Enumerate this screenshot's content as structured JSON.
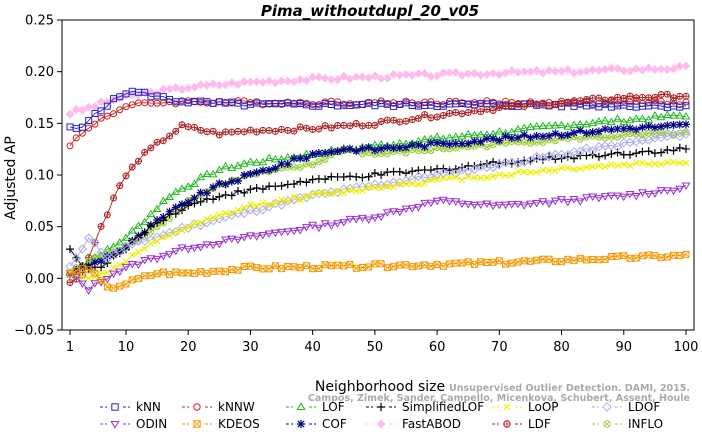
{
  "chart_data": {
    "type": "line",
    "title": "Pima_withoutdupl_20_v05",
    "xlabel": "Neighborhood size",
    "ylabel": "Adjusted AP",
    "xlim": [
      1,
      100
    ],
    "ylim": [
      -0.05,
      0.25
    ],
    "xticks": [
      1,
      10,
      20,
      30,
      40,
      50,
      60,
      70,
      80,
      90,
      100
    ],
    "yticks": [
      -0.05,
      0.0,
      0.05,
      0.1,
      0.15,
      0.2,
      0.25
    ],
    "ytick_labels": [
      "−0.05",
      "0.00",
      "0.05",
      "0.10",
      "0.15",
      "0.20",
      "0.25"
    ],
    "grid": false,
    "legend_position": "bottom",
    "watermark": [
      "Unsupervised Outlier Detection. DAMI, 2015.",
      "Campos, Zimek, Sander, Campello, Micenkova, Schubert, Assent, Houle"
    ],
    "series": [
      {
        "name": "kNN",
        "color": "#2222cc",
        "marker": "square",
        "anchors": [
          [
            1,
            0.145
          ],
          [
            3,
            0.145
          ],
          [
            5,
            0.16
          ],
          [
            8,
            0.172
          ],
          [
            10,
            0.18
          ],
          [
            12,
            0.18
          ],
          [
            15,
            0.176
          ],
          [
            18,
            0.172
          ],
          [
            22,
            0.17
          ],
          [
            30,
            0.168
          ],
          [
            50,
            0.168
          ],
          [
            70,
            0.168
          ],
          [
            100,
            0.167
          ]
        ]
      },
      {
        "name": "kNNW",
        "color": "#cc2222",
        "marker": "circle",
        "anchors": [
          [
            1,
            0.13
          ],
          [
            3,
            0.14
          ],
          [
            6,
            0.155
          ],
          [
            10,
            0.166
          ],
          [
            14,
            0.17
          ],
          [
            20,
            0.171
          ],
          [
            30,
            0.17
          ],
          [
            50,
            0.17
          ],
          [
            70,
            0.17
          ],
          [
            100,
            0.17
          ]
        ]
      },
      {
        "name": "LOF",
        "color": "#22bb22",
        "marker": "triangle-up",
        "anchors": [
          [
            1,
            0.005
          ],
          [
            5,
            0.02
          ],
          [
            8,
            0.03
          ],
          [
            12,
            0.05
          ],
          [
            17,
            0.08
          ],
          [
            20,
            0.09
          ],
          [
            25,
            0.105
          ],
          [
            30,
            0.112
          ],
          [
            40,
            0.12
          ],
          [
            50,
            0.128
          ],
          [
            60,
            0.135
          ],
          [
            70,
            0.141
          ],
          [
            80,
            0.148
          ],
          [
            90,
            0.153
          ],
          [
            100,
            0.158
          ]
        ]
      },
      {
        "name": "SimplifiedLOF",
        "color": "#000000",
        "marker": "plus",
        "anchors": [
          [
            1,
            0.03
          ],
          [
            3,
            0.01
          ],
          [
            6,
            0.01
          ],
          [
            10,
            0.03
          ],
          [
            15,
            0.055
          ],
          [
            20,
            0.07
          ],
          [
            25,
            0.08
          ],
          [
            30,
            0.085
          ],
          [
            40,
            0.095
          ],
          [
            50,
            0.1
          ],
          [
            60,
            0.105
          ],
          [
            70,
            0.112
          ],
          [
            80,
            0.117
          ],
          [
            90,
            0.121
          ],
          [
            100,
            0.125
          ]
        ]
      },
      {
        "name": "LoOP",
        "color": "#eeee00",
        "marker": "x",
        "anchors": [
          [
            1,
            0.005
          ],
          [
            5,
            0.0
          ],
          [
            8,
            0.01
          ],
          [
            12,
            0.025
          ],
          [
            18,
            0.045
          ],
          [
            25,
            0.06
          ],
          [
            30,
            0.07
          ],
          [
            40,
            0.08
          ],
          [
            50,
            0.088
          ],
          [
            60,
            0.095
          ],
          [
            70,
            0.1
          ],
          [
            80,
            0.106
          ],
          [
            90,
            0.11
          ],
          [
            100,
            0.113
          ]
        ]
      },
      {
        "name": "LDOF",
        "color": "#aaaaee",
        "marker": "diamond",
        "anchors": [
          [
            1,
            0.01
          ],
          [
            4,
            0.04
          ],
          [
            7,
            0.02
          ],
          [
            10,
            0.03
          ],
          [
            15,
            0.04
          ],
          [
            20,
            0.05
          ],
          [
            30,
            0.065
          ],
          [
            40,
            0.08
          ],
          [
            50,
            0.09
          ],
          [
            60,
            0.1
          ],
          [
            70,
            0.11
          ],
          [
            80,
            0.12
          ],
          [
            90,
            0.13
          ],
          [
            100,
            0.14
          ]
        ]
      },
      {
        "name": "ODIN",
        "color": "#9933cc",
        "marker": "triangle-down",
        "anchors": [
          [
            1,
            0.005
          ],
          [
            4,
            -0.01
          ],
          [
            8,
            0.005
          ],
          [
            12,
            0.015
          ],
          [
            20,
            0.03
          ],
          [
            30,
            0.04
          ],
          [
            40,
            0.05
          ],
          [
            50,
            0.06
          ],
          [
            60,
            0.075
          ],
          [
            70,
            0.07
          ],
          [
            80,
            0.075
          ],
          [
            90,
            0.08
          ],
          [
            100,
            0.088
          ]
        ]
      },
      {
        "name": "KDEOS",
        "color": "#ee9900",
        "marker": "square-x",
        "anchors": [
          [
            1,
            0.005
          ],
          [
            4,
            0.01
          ],
          [
            7,
            -0.01
          ],
          [
            10,
            -0.005
          ],
          [
            15,
            0.005
          ],
          [
            20,
            0.005
          ],
          [
            30,
            0.01
          ],
          [
            50,
            0.012
          ],
          [
            70,
            0.015
          ],
          [
            90,
            0.02
          ],
          [
            100,
            0.022
          ]
        ]
      },
      {
        "name": "COF",
        "color": "#000088",
        "marker": "star",
        "anchors": [
          [
            1,
            0.005
          ],
          [
            5,
            0.015
          ],
          [
            10,
            0.03
          ],
          [
            15,
            0.055
          ],
          [
            20,
            0.075
          ],
          [
            25,
            0.09
          ],
          [
            30,
            0.1
          ],
          [
            35,
            0.11
          ],
          [
            40,
            0.12
          ],
          [
            45,
            0.125
          ],
          [
            50,
            0.125
          ],
          [
            60,
            0.13
          ],
          [
            70,
            0.135
          ],
          [
            80,
            0.14
          ],
          [
            90,
            0.145
          ],
          [
            100,
            0.148
          ]
        ]
      },
      {
        "name": "FastABOD",
        "color": "#ffbbee",
        "marker": "diamond-filled",
        "anchors": [
          [
            1,
            0.16
          ],
          [
            4,
            0.165
          ],
          [
            8,
            0.173
          ],
          [
            12,
            0.178
          ],
          [
            20,
            0.185
          ],
          [
            30,
            0.19
          ],
          [
            40,
            0.193
          ],
          [
            50,
            0.195
          ],
          [
            60,
            0.197
          ],
          [
            70,
            0.199
          ],
          [
            80,
            0.2
          ],
          [
            90,
            0.202
          ],
          [
            100,
            0.204
          ]
        ]
      },
      {
        "name": "LDF",
        "color": "#aa2222",
        "marker": "circle-plus",
        "anchors": [
          [
            1,
            -0.005
          ],
          [
            3,
            0.005
          ],
          [
            6,
            0.05
          ],
          [
            9,
            0.09
          ],
          [
            12,
            0.115
          ],
          [
            15,
            0.13
          ],
          [
            19,
            0.147
          ],
          [
            25,
            0.14
          ],
          [
            30,
            0.143
          ],
          [
            40,
            0.145
          ],
          [
            50,
            0.15
          ],
          [
            60,
            0.158
          ],
          [
            70,
            0.165
          ],
          [
            80,
            0.17
          ],
          [
            90,
            0.175
          ],
          [
            100,
            0.177
          ]
        ]
      },
      {
        "name": "INFLO",
        "color": "#99cc33",
        "marker": "circle-x",
        "anchors": [
          [
            1,
            0.005
          ],
          [
            5,
            0.02
          ],
          [
            10,
            0.03
          ],
          [
            15,
            0.05
          ],
          [
            20,
            0.075
          ],
          [
            25,
            0.09
          ],
          [
            30,
            0.1
          ],
          [
            40,
            0.11
          ],
          [
            45,
            0.125
          ],
          [
            50,
            0.12
          ],
          [
            60,
            0.125
          ],
          [
            70,
            0.13
          ],
          [
            80,
            0.135
          ],
          [
            90,
            0.138
          ],
          [
            100,
            0.14
          ]
        ]
      }
    ],
    "legend_rows": [
      [
        "kNN",
        "kNNW",
        "LOF",
        "SimplifiedLOF",
        "LoOP",
        "LDOF"
      ],
      [
        "ODIN",
        "KDEOS",
        "COF",
        "FastABOD",
        "LDF",
        "INFLO"
      ]
    ]
  }
}
